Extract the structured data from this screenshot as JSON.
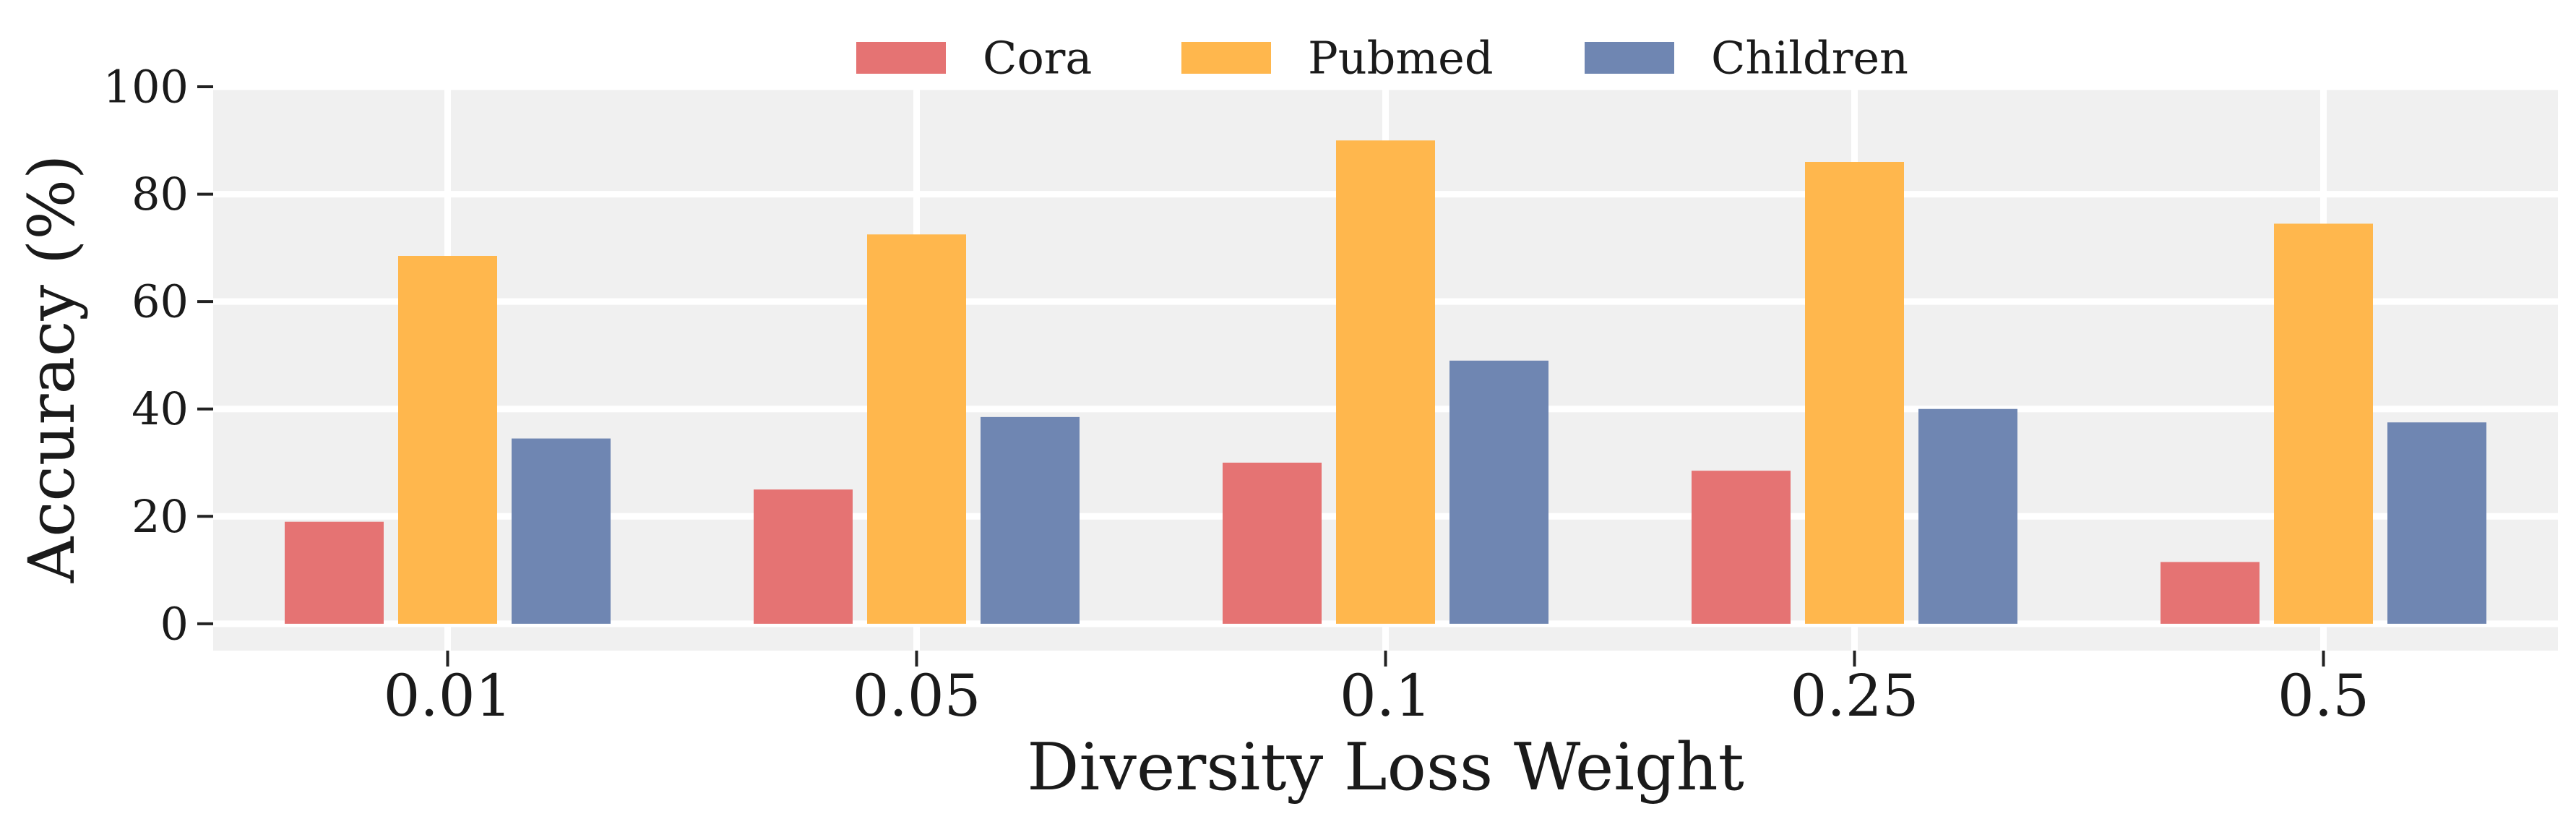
{
  "chart_data": {
    "type": "bar",
    "title": "",
    "xlabel": "Diversity Loss Weight",
    "ylabel": "Accuracy (%)",
    "categories": [
      "0.01",
      "0.05",
      "0.1",
      "0.25",
      "0.5"
    ],
    "ylim": [
      -5,
      100
    ],
    "yticks": [
      0,
      20,
      40,
      60,
      80,
      100
    ],
    "ytick_labels": [
      "0",
      "20",
      "40",
      "60",
      "80",
      "100"
    ],
    "grid": true,
    "legend_position": "top-center",
    "series": [
      {
        "name": "Cora",
        "color": "#e57373",
        "values": [
          19,
          25,
          30,
          28.5,
          11.5
        ]
      },
      {
        "name": "Pubmed",
        "color": "#ffb74d",
        "values": [
          68.5,
          72.5,
          90,
          86,
          74.5
        ]
      },
      {
        "name": "Children",
        "color": "#6f86b2",
        "values": [
          34.5,
          38.5,
          49,
          40,
          37.5
        ]
      }
    ]
  },
  "style": {
    "plot_background": "#f0f0f0",
    "grid_color": "#ffffff"
  }
}
